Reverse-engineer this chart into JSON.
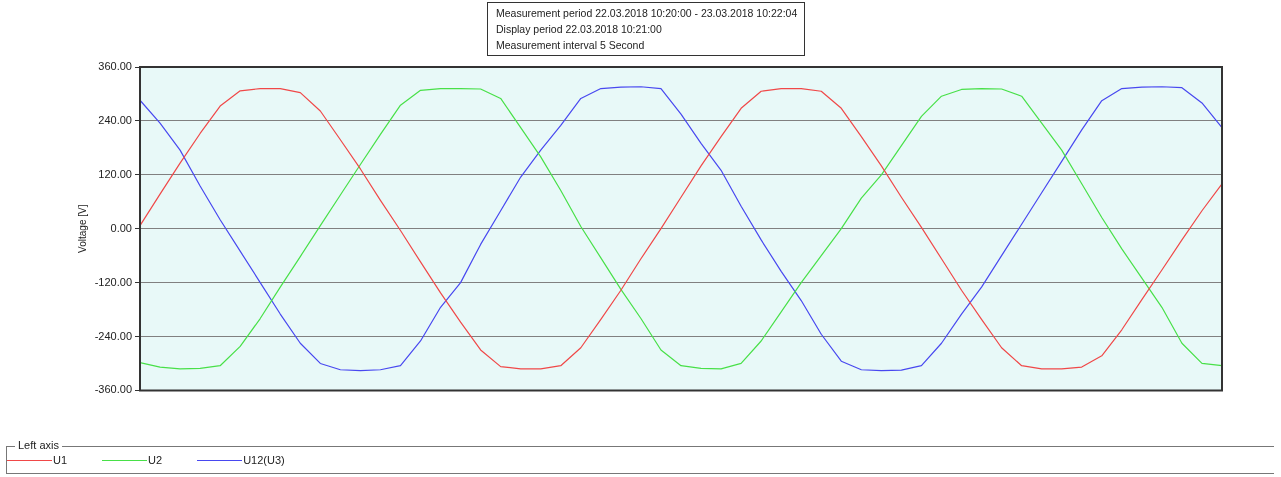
{
  "chart_data": {
    "type": "line",
    "annotations": [
      "Measurement period  22.03.2018 10:20:00 - 23.03.2018 10:22:04",
      "Display period  22.03.2018 10:21:00",
      "Measurement interval  5 Second"
    ],
    "ylabel": "Voltage [V]",
    "legend_title": "Left axis",
    "legend": "bottom",
    "grid": "y",
    "tick_labels": "y",
    "marker": "none",
    "line_style": "solid",
    "ylim": [
      -360,
      360
    ],
    "yticks": [
      {
        "value": -360,
        "label": "-360.00"
      },
      {
        "value": -240,
        "label": "-240.00"
      },
      {
        "value": -120,
        "label": "-120.00"
      },
      {
        "value": 0,
        "label": "0.00"
      },
      {
        "value": 120,
        "label": "120.00"
      },
      {
        "value": 240,
        "label": "240.00"
      },
      {
        "value": 360,
        "label": "360.00"
      }
    ],
    "categories": [
      null,
      null,
      null,
      null,
      null,
      null,
      null,
      null,
      null,
      null,
      null,
      null,
      null,
      null,
      null,
      null,
      null,
      null,
      null,
      null,
      null,
      null,
      null,
      null,
      null,
      null,
      null,
      null,
      null,
      null,
      null,
      null,
      null,
      null,
      null,
      null,
      null,
      null,
      null,
      null,
      null,
      null,
      null,
      null,
      null,
      null,
      null,
      null,
      null,
      null,
      null,
      null,
      null,
      null,
      null
    ],
    "series": [
      {
        "name": "U1",
        "color": "#f04848",
        "values": [
          7,
          77,
          146,
          212,
          273,
          307,
          312,
          312,
          303,
          262,
          198,
          133,
          63,
          -4,
          -74,
          -143,
          -208,
          -270,
          -307,
          -312,
          -312,
          -305,
          -265,
          -202,
          -137,
          -67,
          0,
          70,
          140,
          205,
          268,
          306,
          312,
          312,
          306,
          268,
          205,
          140,
          70,
          3,
          -67,
          -137,
          -202,
          -265,
          -305,
          -312,
          -312,
          -308,
          -283,
          -225,
          -158,
          -92,
          -25,
          40,
          100
        ]
      },
      {
        "name": "U2",
        "color": "#48e048",
        "values": [
          -298,
          -308,
          -312,
          -311,
          -305,
          -262,
          -200,
          -130,
          -62,
          7,
          75,
          143,
          210,
          275,
          308,
          312,
          312,
          311,
          290,
          225,
          160,
          85,
          5,
          -65,
          -135,
          -200,
          -270,
          -305,
          -311,
          -312,
          -300,
          -250,
          -185,
          -120,
          -60,
          0,
          68,
          120,
          185,
          250,
          295,
          310,
          312,
          311,
          295,
          235,
          175,
          100,
          25,
          -45,
          -110,
          -175,
          -255,
          -300,
          -305
        ]
      },
      {
        "name": "U12(U3)",
        "color": "#4848f0",
        "values": [
          286,
          235,
          175,
          95,
          20,
          -50,
          -120,
          -190,
          -255,
          -300,
          -314,
          -316,
          -314,
          -305,
          -250,
          -175,
          -120,
          -35,
          40,
          115,
          175,
          230,
          290,
          312,
          315,
          316,
          312,
          255,
          190,
          130,
          50,
          -25,
          -95,
          -160,
          -235,
          -295,
          -314,
          -316,
          -315,
          -305,
          -255,
          -190,
          -130,
          -60,
          10,
          80,
          150,
          220,
          285,
          312,
          315,
          316,
          314,
          280,
          225
        ]
      }
    ]
  }
}
